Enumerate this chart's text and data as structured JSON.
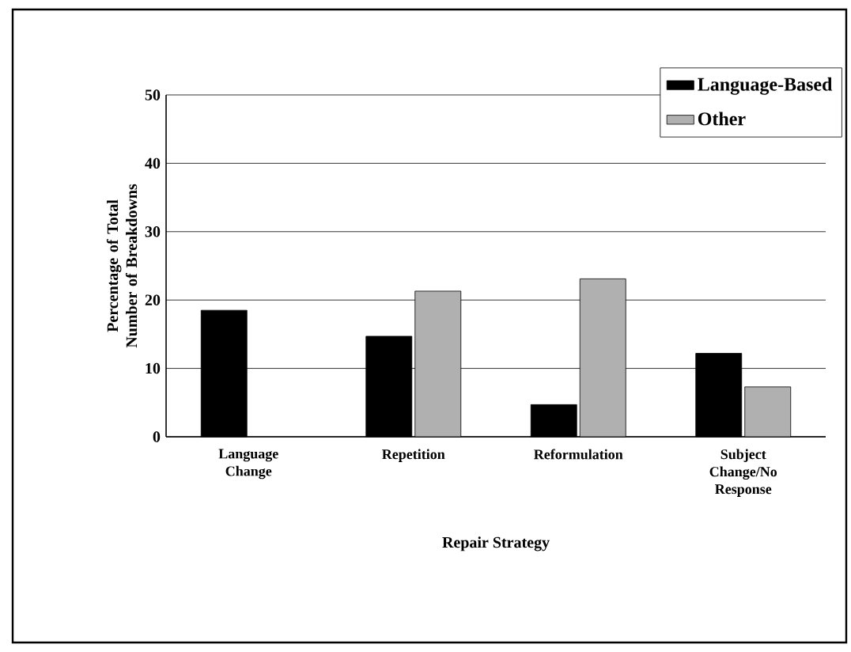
{
  "chart_data": {
    "type": "bar",
    "xlabel": "Repair Strategy",
    "ylabel": "Percentage of Total Number of Breakdowns",
    "categories": [
      "Language Change",
      "Repetition",
      "Reformulation",
      "Subject Change/No Response"
    ],
    "series": [
      {
        "name": "Language-Based",
        "color": "#000000",
        "values": [
          18.5,
          14.7,
          4.7,
          12.2
        ]
      },
      {
        "name": "Other",
        "color": "#b0b0b0",
        "values": [
          null,
          21.3,
          23.1,
          7.3
        ]
      }
    ],
    "ylim": [
      0,
      50
    ],
    "yticks": [
      0,
      10,
      20,
      30,
      40,
      50
    ],
    "grid": "y",
    "legend": "top right"
  }
}
